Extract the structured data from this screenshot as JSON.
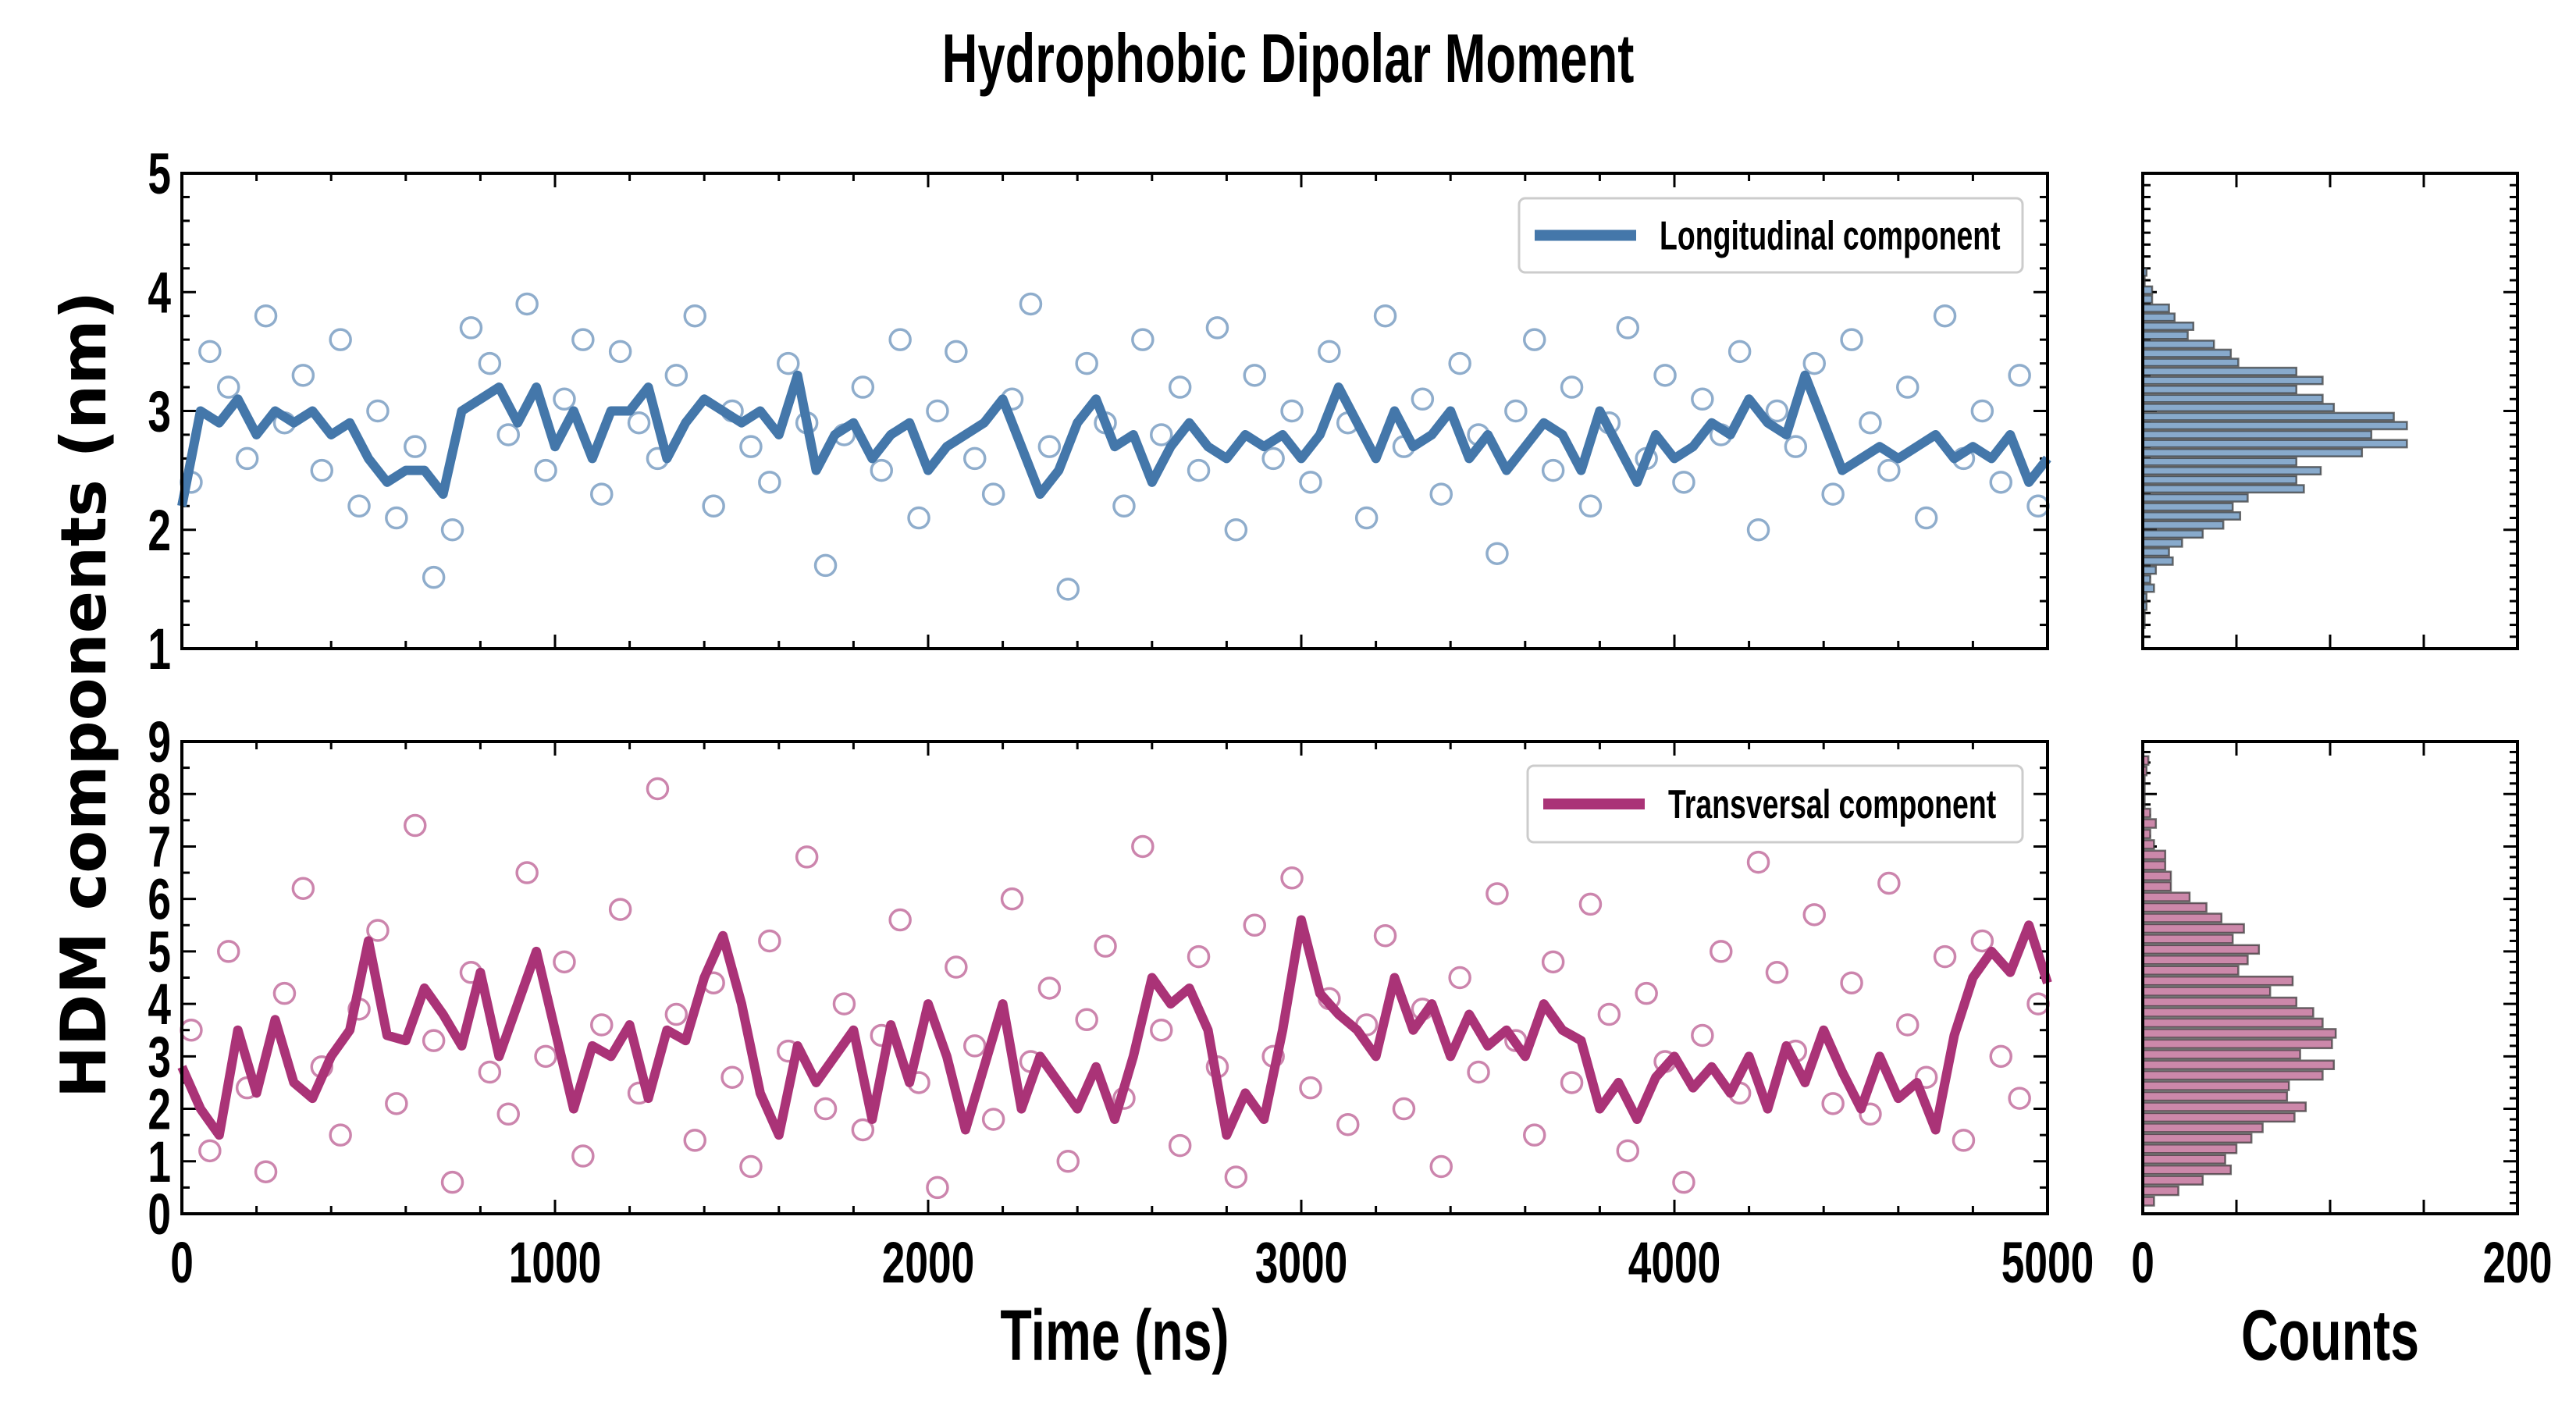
{
  "chart_data": [
    {
      "type": "scatter",
      "title": "Hydrophobic Dipolar Moment",
      "ylabel": "HDM components (nm)",
      "xlabel": "",
      "xlim": [
        0,
        5000
      ],
      "ylim": [
        1,
        5
      ],
      "yticks": [
        "1",
        "2",
        "3",
        "4",
        "5"
      ],
      "legend": {
        "label": "Longitudinal component",
        "placement": "top-right"
      },
      "color": "#4477aa",
      "line_x_step": 50,
      "line": [
        2.2,
        3.0,
        2.9,
        3.1,
        2.8,
        3.0,
        2.9,
        3.0,
        2.8,
        2.9,
        2.6,
        2.4,
        2.5,
        2.5,
        2.3,
        3.0,
        3.1,
        3.2,
        2.9,
        3.2,
        2.7,
        3.0,
        2.6,
        3.0,
        3.0,
        3.2,
        2.6,
        2.9,
        3.1,
        3.0,
        2.9,
        3.0,
        2.8,
        3.3,
        2.5,
        2.8,
        2.9,
        2.6,
        2.8,
        2.9,
        2.5,
        2.7,
        2.8,
        2.9,
        3.1,
        2.7,
        2.3,
        2.5,
        2.9,
        3.1,
        2.7,
        2.8,
        2.4,
        2.7,
        2.9,
        2.7,
        2.6,
        2.8,
        2.7,
        2.8,
        2.6,
        2.8,
        3.2,
        2.9,
        2.6,
        3.0,
        2.7,
        2.8,
        3.0,
        2.6,
        2.8,
        2.5,
        2.7,
        2.9,
        2.8,
        2.5,
        3.0,
        2.7,
        2.4,
        2.8,
        2.6,
        2.7,
        2.9,
        2.8,
        3.1,
        2.9,
        2.8,
        3.3,
        2.9,
        2.5,
        2.6,
        2.7,
        2.6,
        2.7,
        2.8,
        2.6,
        2.7,
        2.6,
        2.8,
        2.4,
        2.6
      ],
      "scatter": [
        2.4,
        3.5,
        3.2,
        2.6,
        3.8,
        2.9,
        3.3,
        2.5,
        3.6,
        2.2,
        3.0,
        2.1,
        2.7,
        1.6,
        2.0,
        3.7,
        3.4,
        2.8,
        3.9,
        2.5,
        3.1,
        3.6,
        2.3,
        3.5,
        2.9,
        2.6,
        3.3,
        3.8,
        2.2,
        3.0,
        2.7,
        2.4,
        3.4,
        2.9,
        1.7,
        2.8,
        3.2,
        2.5,
        3.6,
        2.1,
        3.0,
        3.5,
        2.6,
        2.3,
        3.1,
        3.9,
        2.7,
        1.5,
        3.4,
        2.9,
        2.2,
        3.6,
        2.8,
        3.2,
        2.5,
        3.7,
        2.0,
        3.3,
        2.6,
        3.0,
        2.4,
        3.5,
        2.9,
        2.1,
        3.8,
        2.7,
        3.1,
        2.3,
        3.4,
        2.8,
        1.8,
        3.0,
        3.6,
        2.5,
        3.2,
        2.2,
        2.9,
        3.7,
        2.6,
        3.3,
        2.4,
        3.1,
        2.8,
        3.5,
        2.0,
        3.0,
        2.7,
        3.4,
        2.3,
        3.6,
        2.9,
        2.5,
        3.2,
        2.1,
        3.8,
        2.6,
        3.0,
        2.4,
        3.3,
        2.2
      ]
    },
    {
      "type": "scatter",
      "xlabel": "Time (ns)",
      "xlim": [
        0,
        5000
      ],
      "ylim": [
        0,
        9
      ],
      "xticks": [
        "0",
        "1000",
        "2000",
        "3000",
        "4000",
        "5000"
      ],
      "yticks": [
        "0",
        "1",
        "2",
        "3",
        "4",
        "5",
        "6",
        "7",
        "8",
        "9"
      ],
      "legend": {
        "label": "Transversal component",
        "placement": "top-right"
      },
      "color": "#aa3377",
      "line_x_step": 50,
      "line": [
        2.8,
        2.0,
        1.5,
        3.5,
        2.3,
        3.7,
        2.5,
        2.2,
        3.0,
        3.5,
        5.2,
        3.4,
        3.3,
        4.3,
        3.8,
        3.2,
        4.6,
        3.0,
        4.0,
        5.0,
        3.5,
        2.0,
        3.2,
        3.0,
        3.6,
        2.2,
        3.5,
        3.3,
        4.5,
        5.3,
        4.0,
        2.3,
        1.5,
        3.2,
        2.5,
        3.0,
        3.5,
        1.8,
        3.6,
        2.5,
        4.0,
        3.0,
        1.6,
        2.8,
        4.0,
        2.0,
        3.0,
        2.5,
        2.0,
        2.8,
        1.8,
        3.0,
        4.5,
        4.0,
        4.3,
        3.5,
        1.5,
        2.3,
        1.8,
        3.5,
        5.6,
        4.2,
        3.8,
        3.5,
        3.0,
        4.5,
        3.5,
        4.0,
        3.0,
        3.8,
        3.2,
        3.5,
        3.0,
        4.0,
        3.5,
        3.3,
        2.0,
        2.5,
        1.8,
        2.6,
        3.0,
        2.4,
        2.8,
        2.3,
        3.0,
        2.0,
        3.2,
        2.5,
        3.5,
        2.7,
        2.0,
        3.0,
        2.2,
        2.5,
        1.6,
        3.4,
        4.5,
        5.0,
        4.6,
        5.5,
        4.4
      ],
      "scatter": [
        3.5,
        1.2,
        5.0,
        2.4,
        0.8,
        4.2,
        6.2,
        2.8,
        1.5,
        3.9,
        5.4,
        2.1,
        7.4,
        3.3,
        0.6,
        4.6,
        2.7,
        1.9,
        6.5,
        3.0,
        4.8,
        1.1,
        3.6,
        5.8,
        2.3,
        8.1,
        3.8,
        1.4,
        4.4,
        2.6,
        0.9,
        5.2,
        3.1,
        6.8,
        2.0,
        4.0,
        1.6,
        3.4,
        5.6,
        2.5,
        0.5,
        4.7,
        3.2,
        1.8,
        6.0,
        2.9,
        4.3,
        1.0,
        3.7,
        5.1,
        2.2,
        7.0,
        3.5,
        1.3,
        4.9,
        2.8,
        0.7,
        5.5,
        3.0,
        6.4,
        2.4,
        4.1,
        1.7,
        3.6,
        5.3,
        2.0,
        3.9,
        0.9,
        4.5,
        2.7,
        6.1,
        3.3,
        1.5,
        4.8,
        2.5,
        5.9,
        3.8,
        1.2,
        4.2,
        2.9,
        0.6,
        3.4,
        5.0,
        2.3,
        6.7,
        4.6,
        3.1,
        5.7,
        2.1,
        4.4,
        1.9,
        6.3,
        3.6,
        2.6,
        4.9,
        1.4,
        5.2,
        3.0,
        2.2,
        4.0
      ]
    },
    {
      "type": "bar",
      "orientation": "horizontal",
      "xlim": [
        0,
        200
      ],
      "ylim": [
        1,
        5
      ],
      "bin_top": 4.2,
      "bin_width": 0.076,
      "counts": [
        2,
        1,
        5,
        5,
        14,
        17,
        27,
        24,
        38,
        47,
        51,
        82,
        96,
        82,
        96,
        102,
        134,
        141,
        122,
        141,
        117,
        82,
        95,
        82,
        86,
        56,
        48,
        52,
        43,
        32,
        21,
        14,
        16,
        7,
        4,
        6,
        2,
        2,
        1,
        1
      ],
      "color": "#88aacc"
    },
    {
      "type": "bar",
      "orientation": "horizontal",
      "xlim": [
        0,
        200
      ],
      "ylim": [
        0,
        9
      ],
      "xticks": [
        "0",
        "200"
      ],
      "xlabel": "Counts",
      "bin_top": 8.72,
      "bin_width": 0.2,
      "counts": [
        3,
        2,
        1,
        1,
        1,
        4,
        7,
        4,
        6,
        12,
        12,
        15,
        15,
        25,
        34,
        42,
        54,
        48,
        62,
        56,
        51,
        80,
        68,
        82,
        91,
        96,
        103,
        101,
        84,
        102,
        96,
        78,
        77,
        87,
        81,
        64,
        58,
        50,
        44,
        47,
        32,
        19,
        6
      ],
      "color": "#cc88aa"
    }
  ]
}
